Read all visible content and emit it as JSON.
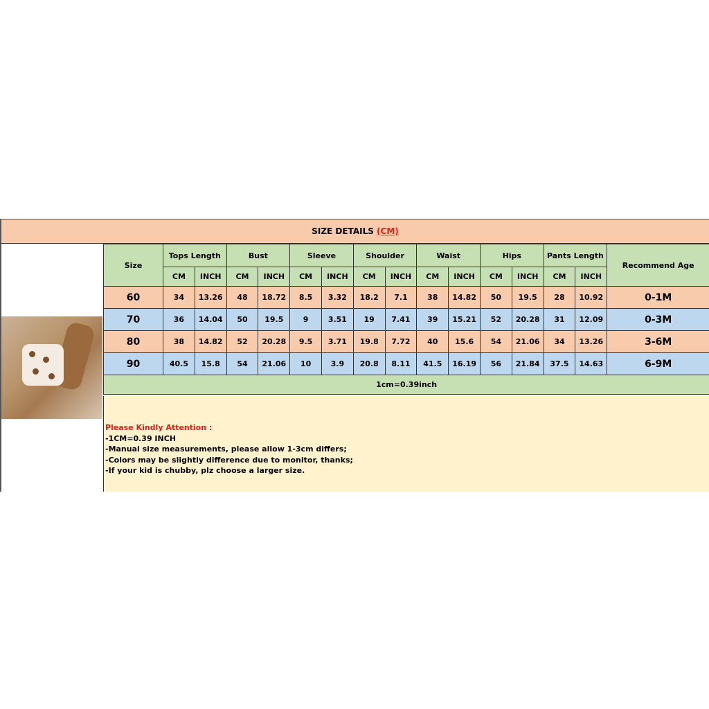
{
  "title": {
    "text": "SIZE DETAILS",
    "unit": "(CM)"
  },
  "headers": {
    "size": "Size",
    "groups": [
      "Tops Length",
      "Bust",
      "Sleeve",
      "Shoulder",
      "Waist",
      "Hips",
      "Pants Length"
    ],
    "sub": [
      "CM",
      "INCH"
    ],
    "age": "Recommend Age"
  },
  "rows": [
    {
      "size": "60",
      "values": [
        "34",
        "13.26",
        "48",
        "18.72",
        "8.5",
        "3.32",
        "18.2",
        "7.1",
        "38",
        "14.82",
        "50",
        "19.5",
        "28",
        "10.92"
      ],
      "age": "0-1M"
    },
    {
      "size": "70",
      "values": [
        "36",
        "14.04",
        "50",
        "19.5",
        "9",
        "3.51",
        "19",
        "7.41",
        "39",
        "15.21",
        "52",
        "20.28",
        "31",
        "12.09"
      ],
      "age": "0-3M"
    },
    {
      "size": "80",
      "values": [
        "38",
        "14.82",
        "52",
        "20.28",
        "9.5",
        "3.71",
        "19.8",
        "7.72",
        "40",
        "15.6",
        "54",
        "21.06",
        "34",
        "13.26"
      ],
      "age": "3-6M"
    },
    {
      "size": "90",
      "values": [
        "40.5",
        "15.8",
        "54",
        "21.06",
        "10",
        "3.9",
        "20.8",
        "8.11",
        "41.5",
        "16.19",
        "56",
        "21.84",
        "37.5",
        "14.63"
      ],
      "age": "6-9M"
    }
  ],
  "conversion": "1cm=0.39inch",
  "attention": {
    "heading": "Please Kindly Attention :",
    "lines": [
      "-1CM=0.39 INCH",
      "-Manual size measurements, please allow 1-3cm differs;",
      "-Colors may be slightly difference due to monitor, thanks;",
      "-If your kid is chubby, plz choose a larger size."
    ]
  },
  "colors": {
    "header": "#c6e0b4",
    "odd_row": "#f7cbac",
    "even_row": "#bdd7ee",
    "notes": "#fff2cc",
    "accent": "#e0201a"
  }
}
